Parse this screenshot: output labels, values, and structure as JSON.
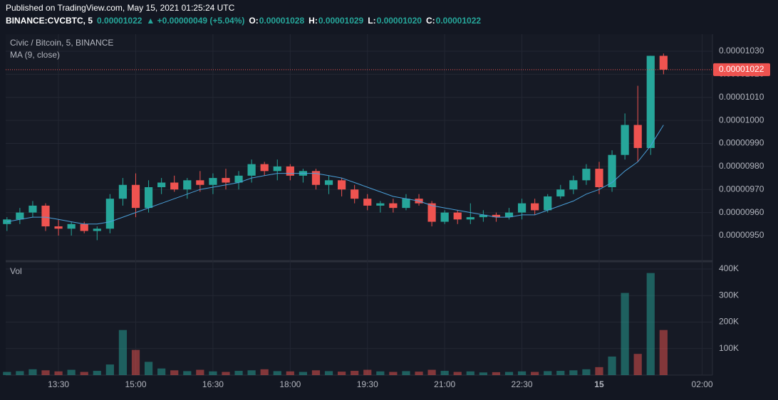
{
  "header": {
    "published": "Published on TradingView.com, May 15, 2021 01:25:24 UTC",
    "symbol": "BINANCE:CVCBTC, 5",
    "price": "0.00001022",
    "change": "▲ +0.00000049 (+5.04%)",
    "ohlc": [
      {
        "key": "O:",
        "value": "0.00001028"
      },
      {
        "key": "H:",
        "value": "0.00001029"
      },
      {
        "key": "L:",
        "value": "0.00001020"
      },
      {
        "key": "C:",
        "value": "0.00001022"
      }
    ]
  },
  "chart_data": {
    "type": "candlestick",
    "legend": {
      "name": "Civic / Bitcoin, 5, BINANCE",
      "ma": "MA (9, close)",
      "volume": "Vol"
    },
    "up_color": "#26a69a",
    "down_color": "#ef5350",
    "ma_color": "#4a9fd8",
    "price_tag": "0.00001022",
    "xlim": [
      -0.1,
      54.8
    ],
    "xticks": [
      {
        "value": 4,
        "label": "13:30"
      },
      {
        "value": 10,
        "label": "15:00"
      },
      {
        "value": 16,
        "label": "16:30"
      },
      {
        "value": 22,
        "label": "18:00"
      },
      {
        "value": 28,
        "label": "19:30"
      },
      {
        "value": 34,
        "label": "21:00"
      },
      {
        "value": 40,
        "label": "22:30"
      },
      {
        "value": 46,
        "label": "15"
      },
      {
        "value": 54,
        "label": "02:00"
      }
    ],
    "ylim": [
      9.395e-06,
      1.0374e-05
    ],
    "yticks": [
      {
        "value": 9.5e-06,
        "label": "0.00000950"
      },
      {
        "value": 9.6e-06,
        "label": "0.00000960"
      },
      {
        "value": 9.7e-06,
        "label": "0.00000970"
      },
      {
        "value": 9.8e-06,
        "label": "0.00000980"
      },
      {
        "value": 9.9e-06,
        "label": "0.00000990"
      },
      {
        "value": 1e-05,
        "label": "0.00001000"
      },
      {
        "value": 1.01e-05,
        "label": "0.00001010"
      },
      {
        "value": 1.02e-05,
        "label": "0.00001020"
      },
      {
        "value": 1.03e-05,
        "label": "0.00001030"
      }
    ],
    "y2lim": [
      0,
      421600
    ],
    "y2ticks": [
      {
        "value": 100000,
        "label": "100K"
      },
      {
        "value": 200000,
        "label": "200K"
      },
      {
        "value": 300000,
        "label": "300K"
      },
      {
        "value": 400000,
        "label": "400K"
      }
    ],
    "open": [
      9.55e-06,
      9.57e-06,
      9.6e-06,
      9.63e-06,
      9.54e-06,
      9.53e-06,
      9.55e-06,
      9.52e-06,
      9.53e-06,
      9.66e-06,
      9.72e-06,
      9.62e-06,
      9.71e-06,
      9.73e-06,
      9.7e-06,
      9.74e-06,
      9.72e-06,
      9.75e-06,
      9.73e-06,
      9.76e-06,
      9.81e-06,
      9.78e-06,
      9.8e-06,
      9.76e-06,
      9.78e-06,
      9.72e-06,
      9.74e-06,
      9.7e-06,
      9.66e-06,
      9.63e-06,
      9.64e-06,
      9.62e-06,
      9.66e-06,
      9.64e-06,
      9.56e-06,
      9.6e-06,
      9.57e-06,
      9.58e-06,
      9.59e-06,
      9.58e-06,
      9.6e-06,
      9.64e-06,
      9.61e-06,
      9.67e-06,
      9.7e-06,
      9.74e-06,
      9.79e-06,
      9.71e-06,
      9.85e-06,
      9.98e-06,
      9.88e-06,
      1.028e-05
    ],
    "high": [
      9.58e-06,
      9.62e-06,
      9.65e-06,
      9.64e-06,
      9.57e-06,
      9.56e-06,
      9.56e-06,
      9.54e-06,
      9.68e-06,
      9.75e-06,
      9.77e-06,
      9.74e-06,
      9.75e-06,
      9.76e-06,
      9.75e-06,
      9.78e-06,
      9.77e-06,
      9.79e-06,
      9.78e-06,
      9.83e-06,
      9.82e-06,
      9.83e-06,
      9.81e-06,
      9.79e-06,
      9.79e-06,
      9.76e-06,
      9.75e-06,
      9.72e-06,
      9.68e-06,
      9.65e-06,
      9.66e-06,
      9.68e-06,
      9.68e-06,
      9.65e-06,
      9.61e-06,
      9.61e-06,
      9.64e-06,
      9.61e-06,
      9.6e-06,
      9.62e-06,
      9.66e-06,
      9.66e-06,
      9.68e-06,
      9.72e-06,
      9.76e-06,
      9.81e-06,
      9.82e-06,
      9.87e-06,
      1.003e-05,
      1.015e-05,
      1.028e-05,
      1.029e-05
    ],
    "low": [
      9.52e-06,
      9.55e-06,
      9.58e-06,
      9.52e-06,
      9.5e-06,
      9.5e-06,
      9.51e-06,
      9.48e-06,
      9.51e-06,
      9.63e-06,
      9.58e-06,
      9.6e-06,
      9.68e-06,
      9.69e-06,
      9.66e-06,
      9.69e-06,
      9.68e-06,
      9.7e-06,
      9.7e-06,
      9.73e-06,
      9.76e-06,
      9.74e-06,
      9.74e-06,
      9.73e-06,
      9.7e-06,
      9.68e-06,
      9.67e-06,
      9.64e-06,
      9.61e-06,
      9.6e-06,
      9.6e-06,
      9.61e-06,
      9.63e-06,
      9.54e-06,
      9.55e-06,
      9.55e-06,
      9.55e-06,
      9.56e-06,
      9.56e-06,
      9.57e-06,
      9.57e-06,
      9.59e-06,
      9.6e-06,
      9.66e-06,
      9.68e-06,
      9.72e-06,
      9.68e-06,
      9.69e-06,
      9.83e-06,
      9.82e-06,
      9.85e-06,
      1.02e-05
    ],
    "close": [
      9.57e-06,
      9.6e-06,
      9.63e-06,
      9.54e-06,
      9.53e-06,
      9.55e-06,
      9.52e-06,
      9.53e-06,
      9.66e-06,
      9.72e-06,
      9.62e-06,
      9.71e-06,
      9.73e-06,
      9.7e-06,
      9.74e-06,
      9.72e-06,
      9.75e-06,
      9.73e-06,
      9.76e-06,
      9.81e-06,
      9.78e-06,
      9.8e-06,
      9.76e-06,
      9.78e-06,
      9.72e-06,
      9.74e-06,
      9.7e-06,
      9.66e-06,
      9.63e-06,
      9.64e-06,
      9.62e-06,
      9.66e-06,
      9.64e-06,
      9.56e-06,
      9.6e-06,
      9.57e-06,
      9.58e-06,
      9.59e-06,
      9.58e-06,
      9.6e-06,
      9.64e-06,
      9.61e-06,
      9.67e-06,
      9.7e-06,
      9.74e-06,
      9.79e-06,
      9.71e-06,
      9.85e-06,
      9.98e-06,
      9.88e-06,
      1.028e-05,
      1.022e-05
    ],
    "ma": [
      9.56e-06,
      9.57e-06,
      9.58e-06,
      9.58e-06,
      9.57e-06,
      9.56e-06,
      9.55e-06,
      9.55e-06,
      9.56e-06,
      9.58e-06,
      9.6e-06,
      9.62e-06,
      9.64e-06,
      9.66e-06,
      9.68e-06,
      9.7e-06,
      9.71e-06,
      9.72e-06,
      9.73e-06,
      9.75e-06,
      9.76e-06,
      9.77e-06,
      9.77e-06,
      9.77e-06,
      9.77e-06,
      9.76e-06,
      9.75e-06,
      9.73e-06,
      9.71e-06,
      9.69e-06,
      9.67e-06,
      9.66e-06,
      9.65e-06,
      9.63e-06,
      9.62e-06,
      9.61e-06,
      9.6e-06,
      9.59e-06,
      9.58e-06,
      9.58e-06,
      9.59e-06,
      9.59e-06,
      9.61e-06,
      9.63e-06,
      9.65e-06,
      9.68e-06,
      9.7e-06,
      9.73e-06,
      9.78e-06,
      9.82e-06,
      9.89e-06,
      9.98e-06
    ],
    "volume": [
      12000,
      15000,
      22000,
      18000,
      14000,
      20000,
      12000,
      16000,
      40000,
      170000,
      95000,
      50000,
      25000,
      18000,
      15000,
      20000,
      14000,
      12000,
      16000,
      18000,
      22000,
      15000,
      14000,
      12000,
      18000,
      15000,
      13000,
      16000,
      20000,
      14000,
      12000,
      15000,
      13000,
      20000,
      16000,
      12000,
      14000,
      10000,
      11000,
      12000,
      14000,
      12000,
      15000,
      16000,
      18000,
      22000,
      30000,
      70000,
      310000,
      80000,
      385000,
      170000
    ]
  }
}
